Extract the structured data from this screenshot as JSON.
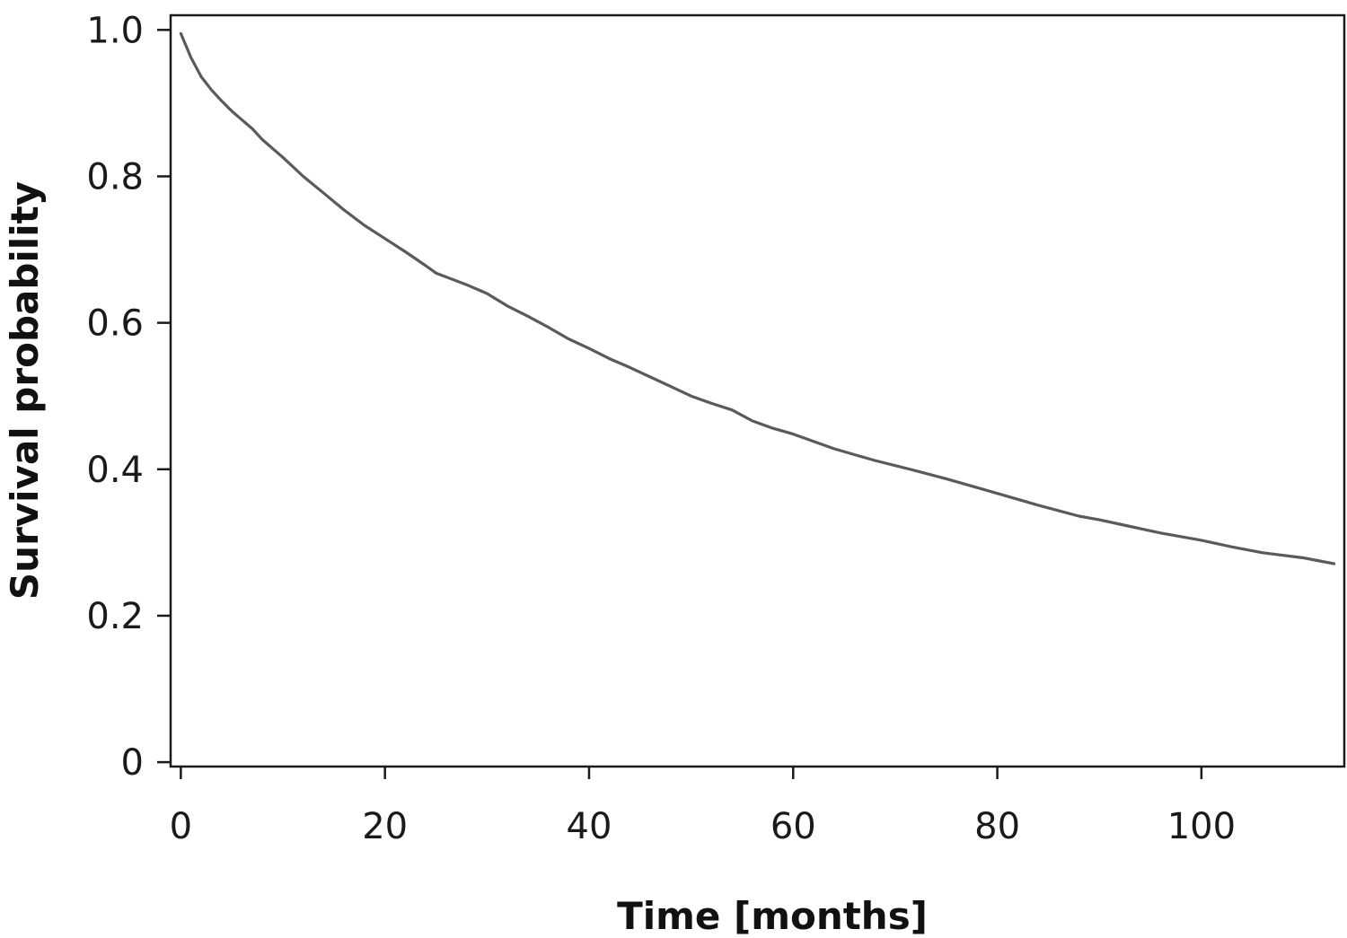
{
  "chart_data": {
    "type": "line",
    "title": "",
    "xlabel": "Time [months]",
    "ylabel": "Survival probability",
    "xlim": [
      -1,
      114
    ],
    "ylim": [
      -0.006,
      1.02
    ],
    "xticks": [
      0,
      20,
      40,
      60,
      80,
      100
    ],
    "xtick_labels": [
      "0",
      "20",
      "40",
      "60",
      "80",
      "100"
    ],
    "yticks": [
      0,
      0.2,
      0.4,
      0.6,
      0.8,
      1.0
    ],
    "ytick_labels": [
      "0",
      "0.2",
      "0.4",
      "0.6",
      "0.8",
      "1.0"
    ],
    "grid": false,
    "legend": "none",
    "line_color": "#5a5a5a",
    "series": [
      {
        "x": [
          0,
          1,
          2,
          3,
          4,
          5,
          6,
          7,
          8,
          10,
          12,
          14,
          16,
          18,
          20,
          22,
          24,
          25,
          28,
          30,
          32,
          34,
          36,
          38,
          40,
          42,
          44,
          46,
          48,
          50,
          52,
          54,
          56,
          58,
          60,
          62,
          64,
          66,
          68,
          70,
          72,
          75,
          78,
          80,
          84,
          88,
          90,
          92,
          96,
          100,
          103,
          106,
          110,
          113
        ],
        "values": [
          0.995,
          0.962,
          0.936,
          0.918,
          0.903,
          0.889,
          0.877,
          0.865,
          0.85,
          0.826,
          0.8,
          0.777,
          0.754,
          0.733,
          0.715,
          0.697,
          0.678,
          0.668,
          0.652,
          0.64,
          0.623,
          0.609,
          0.594,
          0.578,
          0.565,
          0.551,
          0.539,
          0.526,
          0.513,
          0.5,
          0.49,
          0.481,
          0.466,
          0.456,
          0.448,
          0.438,
          0.428,
          0.42,
          0.412,
          0.405,
          0.398,
          0.387,
          0.375,
          0.367,
          0.351,
          0.336,
          0.331,
          0.325,
          0.313,
          0.303,
          0.294,
          0.286,
          0.279,
          0.271
        ]
      }
    ]
  }
}
